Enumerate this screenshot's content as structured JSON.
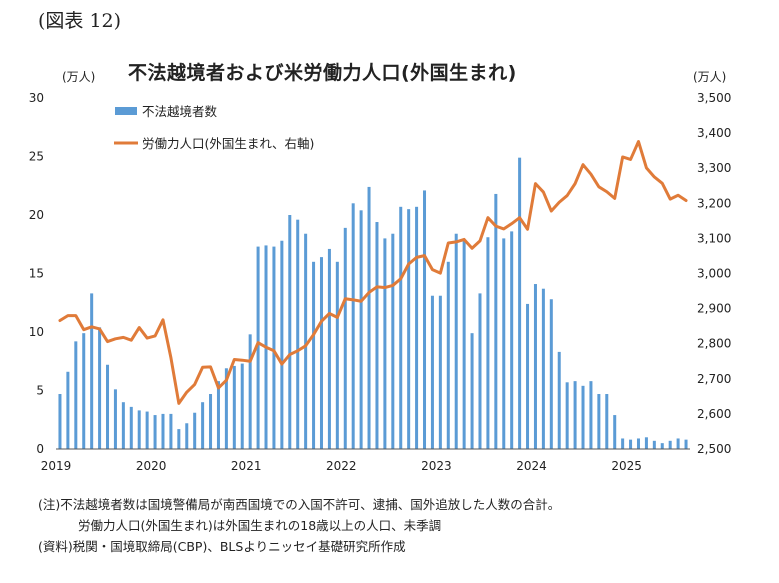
{
  "figure_label": "(図表 12)",
  "notes": {
    "note1": "(注)不法越境者数は国境警備局が南西国境での入国不許可、逮捕、国外追放した人数の合計。",
    "note2": "労働力人口(外国生まれ)は外国生まれの18歳以上の人口、未季調",
    "source": "(資料)税関・国境取締局(CBP)、BLSよりニッセイ基礎研究所作成"
  },
  "colors": {
    "bar": "#5b9bd5",
    "line": "#e07b39",
    "axis": "#555555"
  },
  "chart_data": {
    "type": "bar",
    "title": "不法越境者および米労働力人口(外国生まれ)",
    "y_left_unit": "(万人)",
    "y_right_unit": "(万人)",
    "y_left_ticks": [
      "0",
      "5",
      "10",
      "15",
      "20",
      "25",
      "30"
    ],
    "y_right_ticks": [
      "2,500",
      "2,600",
      "2,700",
      "2,800",
      "2,900",
      "3,000",
      "3,100",
      "3,200",
      "3,300",
      "3,400",
      "3,500"
    ],
    "ylim_left": [
      0,
      30
    ],
    "ylim_right": [
      2500,
      3500
    ],
    "x_ticks": [
      "2019",
      "2020",
      "2021",
      "2022",
      "2023",
      "2024",
      "2025"
    ],
    "grid": false,
    "legend_position": "top-left",
    "series": [
      {
        "name": "不法越境者数",
        "type": "bar",
        "axis": "left",
        "values": [
          4.7,
          6.6,
          9.2,
          9.9,
          13.3,
          10.4,
          7.2,
          5.1,
          4.0,
          3.6,
          3.3,
          3.2,
          2.9,
          3.0,
          3.0,
          1.7,
          2.2,
          3.1,
          4.0,
          4.7,
          5.8,
          6.9,
          7.1,
          7.3,
          9.8,
          17.3,
          17.4,
          17.3,
          17.8,
          20.0,
          19.6,
          18.4,
          16.0,
          16.4,
          17.1,
          16.0,
          18.9,
          21.0,
          20.4,
          22.4,
          19.4,
          18.0,
          18.4,
          20.7,
          20.5,
          20.7,
          22.1,
          13.1,
          13.1,
          16.0,
          18.4,
          17.9,
          9.9,
          13.3,
          18.1,
          21.8,
          18.0,
          18.6,
          24.9,
          12.4,
          14.1,
          13.7,
          12.8,
          8.3,
          5.7,
          5.8,
          5.4,
          5.8,
          4.7,
          4.7,
          2.9,
          0.9,
          0.8,
          0.9,
          1.0,
          0.7,
          0.5,
          0.7,
          0.9,
          0.8
        ]
      },
      {
        "name": "労働力人口(外国生まれ、右軸)",
        "type": "line",
        "axis": "right",
        "values": [
          2866,
          2880,
          2880,
          2840,
          2848,
          2842,
          2806,
          2814,
          2818,
          2810,
          2846,
          2816,
          2822,
          2868,
          2760,
          2630,
          2662,
          2684,
          2733,
          2734,
          2674,
          2696,
          2755,
          2753,
          2750,
          2803,
          2790,
          2780,
          2742,
          2769,
          2780,
          2794,
          2826,
          2864,
          2886,
          2875,
          2928,
          2925,
          2921,
          2946,
          2962,
          2960,
          2966,
          2985,
          3027,
          3046,
          3051,
          3011,
          3001,
          3087,
          3090,
          3097,
          3072,
          3093,
          3159,
          3135,
          3127,
          3142,
          3159,
          3126,
          3256,
          3232,
          3178,
          3203,
          3222,
          3256,
          3310,
          3283,
          3247,
          3233,
          3214,
          3332,
          3325,
          3376,
          3301,
          3275,
          3257,
          3212,
          3223,
          3208
        ]
      }
    ]
  }
}
